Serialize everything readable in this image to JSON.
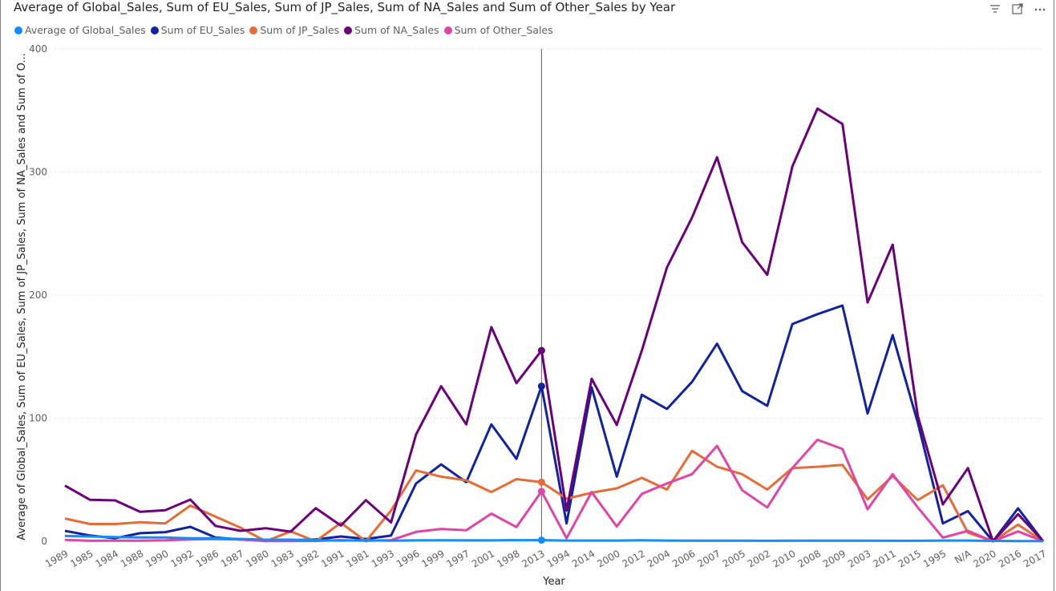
{
  "chart_data": {
    "type": "line",
    "title": "Average of Global_Sales, Sum of EU_Sales, Sum of JP_Sales, Sum of NA_Sales and Sum of Other_Sales by Year",
    "xlabel": "Year",
    "ylabel": "Average of Global_Sales, Sum of EU_Sales, Sum of JP_Sales, Sum of NA_Sales and Sum of O...",
    "ylim": [
      0,
      400
    ],
    "yticks": [
      0,
      100,
      200,
      300,
      400
    ],
    "grid": true,
    "legend_position": "top-left",
    "categories": [
      "1989",
      "1985",
      "1984",
      "1988",
      "1990",
      "1992",
      "1986",
      "1987",
      "1980",
      "1983",
      "1982",
      "1991",
      "1981",
      "1993",
      "1996",
      "1999",
      "1997",
      "2001",
      "1998",
      "2013",
      "1994",
      "2014",
      "2000",
      "2012",
      "2004",
      "2006",
      "2007",
      "2005",
      "2002",
      "2010",
      "2008",
      "2009",
      "2003",
      "2011",
      "2015",
      "1995",
      "N/A",
      "2020",
      "2016",
      "2017"
    ],
    "series": [
      {
        "name": "Average of Global_Sales",
        "color": "#118DFF",
        "values": [
          4.3,
          3.9,
          3.4,
          3.1,
          3.1,
          2.5,
          2.4,
          1.9,
          1.3,
          1.3,
          0.8,
          0.6,
          0.8,
          0.5,
          0.7,
          0.8,
          0.7,
          0.7,
          0.9,
          0.9,
          0.6,
          0.6,
          0.6,
          0.8,
          0.6,
          0.5,
          0.5,
          0.5,
          0.4,
          0.5,
          0.5,
          0.5,
          0.5,
          0.4,
          0.4,
          0.6,
          0.6,
          0.3,
          0.2,
          0.1
        ]
      },
      {
        "name": "Sum of EU_Sales",
        "color": "#12239E",
        "values": [
          8.5,
          4.7,
          2.5,
          6.6,
          7.4,
          11.7,
          3.1,
          1.4,
          0.5,
          0.8,
          1.5,
          3.9,
          1.9,
          4.6,
          47.0,
          62.5,
          48.0,
          95.0,
          67.0,
          126.0,
          14.5,
          125.0,
          52.5,
          119.0,
          107.5,
          129.5,
          160.5,
          122.0,
          110.0,
          176.5,
          184.5,
          191.5,
          103.8,
          167.5,
          96.5,
          14.5,
          24.5,
          0.0,
          26.8,
          0.0
        ]
      },
      {
        "name": "Sum of JP_Sales",
        "color": "#E66C37",
        "values": [
          18.5,
          14.0,
          14.0,
          15.5,
          14.5,
          29.0,
          20.0,
          11.0,
          0.0,
          8.0,
          0.0,
          15.0,
          0.0,
          25.0,
          57.5,
          52.5,
          49.5,
          40.0,
          50.5,
          48.0,
          34.5,
          39.5,
          43.0,
          51.5,
          42.0,
          73.5,
          60.5,
          54.5,
          42.0,
          59.5,
          60.5,
          62.0,
          34.0,
          53.0,
          33.5,
          45.5,
          7.0,
          0.0,
          13.5,
          0.0
        ]
      },
      {
        "name": "Sum of NA_Sales",
        "color": "#6B007B",
        "values": [
          45.2,
          33.7,
          33.2,
          23.9,
          25.3,
          33.9,
          12.5,
          8.5,
          10.6,
          7.8,
          26.9,
          12.8,
          33.4,
          15.3,
          86.8,
          126.0,
          95.0,
          174.0,
          128.5,
          155.0,
          25.0,
          132.0,
          94.5,
          155.0,
          222.5,
          263.0,
          312.0,
          243.0,
          216.5,
          304.5,
          351.5,
          339.0,
          194.0,
          241.0,
          102.0,
          30.0,
          59.5,
          0.0,
          22.0,
          0.0
        ]
      },
      {
        "name": "Sum of Other_Sales",
        "color": "#E044A7",
        "values": [
          1.2,
          0.4,
          0.5,
          0.5,
          0.8,
          1.5,
          1.8,
          1.5,
          0.1,
          0.2,
          0.3,
          0.9,
          0.4,
          0.9,
          7.6,
          10.0,
          9.0,
          22.5,
          11.5,
          40.5,
          2.5,
          40.0,
          12.0,
          38.5,
          47.0,
          54.5,
          77.5,
          41.5,
          27.5,
          59.5,
          82.5,
          75.0,
          26.0,
          54.5,
          27.5,
          3.0,
          8.5,
          0.0,
          8.0,
          0.0
        ]
      }
    ],
    "highlight_category": "2013"
  }
}
